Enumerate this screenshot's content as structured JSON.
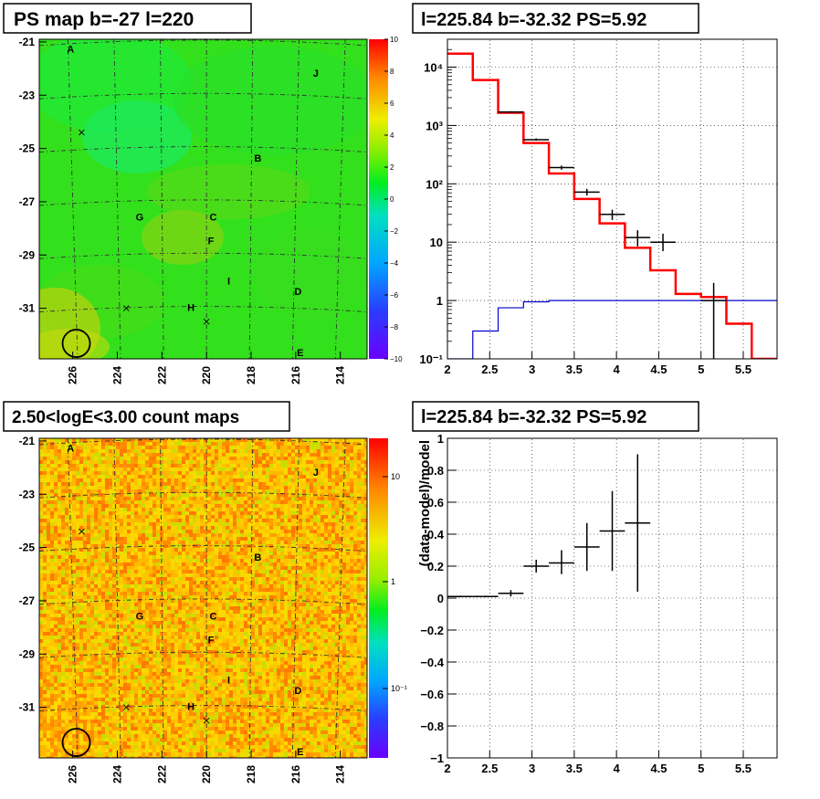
{
  "panels": {
    "ps_map": {
      "title": "PS map b=-27 l=220",
      "palette_ticks": [
        "10",
        "8",
        "6",
        "4",
        "2",
        "0",
        "−2",
        "−4",
        "−6",
        "−8",
        "−10"
      ]
    },
    "count_map": {
      "title": "2.50<logE<3.00 count maps",
      "palette_ticks": [
        "10",
        "1",
        "10⁻¹"
      ]
    },
    "sky": {
      "y_ticks": [
        "-21",
        "-23",
        "-25",
        "-27",
        "-29",
        "-31"
      ],
      "x_ticks": [
        "226",
        "224",
        "222",
        "220",
        "218",
        "216",
        "214"
      ],
      "sources": [
        {
          "label": "A",
          "l": 226.1,
          "b": -21.4
        },
        {
          "label": "J",
          "l": 215.1,
          "b": -22.3
        },
        {
          "label": "B",
          "l": 217.7,
          "b": -25.5
        },
        {
          "label": "G",
          "l": 223.0,
          "b": -27.7
        },
        {
          "label": "C",
          "l": 219.7,
          "b": -27.7
        },
        {
          "label": "F",
          "l": 219.8,
          "b": -28.6
        },
        {
          "label": "I",
          "l": 219.0,
          "b": -30.1
        },
        {
          "label": "D",
          "l": 215.9,
          "b": -30.5
        },
        {
          "label": "H",
          "l": 220.7,
          "b": -31.1
        },
        {
          "label": "E",
          "l": 215.8,
          "b": -32.8
        }
      ],
      "markers": [
        {
          "l": 225.6,
          "b": -24.4
        },
        {
          "l": 223.6,
          "b": -31.0
        },
        {
          "l": 220.0,
          "b": -31.5
        }
      ],
      "roi_circle": {
        "l": 225.84,
        "b": -32.32
      }
    },
    "spectrum": {
      "title": "l=225.84 b=-32.32 PS=5.92"
    },
    "residual": {
      "title": "l=225.84 b=-32.32 PS=5.92"
    }
  },
  "chart_data": [
    {
      "type": "heatmap",
      "title": "PS map b=-27 l=220",
      "xlim": [
        227.5,
        212.8
      ],
      "ylim": [
        -32.9,
        -20.9
      ],
      "colorbar_range": [
        -10,
        10
      ],
      "colorbar_ticks": [
        10,
        8,
        6,
        4,
        2,
        0,
        -2,
        -4,
        -6,
        -8,
        -10
      ],
      "grid": true
    },
    {
      "type": "line",
      "title": "l=225.84 b=-32.32 PS=5.92",
      "xlim": [
        2,
        5.9
      ],
      "ylim": [
        0.1,
        30000
      ],
      "yscale": "log",
      "x_ticks": [
        2,
        2.5,
        3,
        3.5,
        4,
        4.5,
        5,
        5.5
      ],
      "y_ticks": [
        "10⁻¹",
        "1",
        "10",
        "10²",
        "10³",
        "10⁴"
      ],
      "grid": true,
      "series": [
        {
          "kind": "step",
          "color": "#ff0000",
          "bin_edges": [
            2.0,
            2.3,
            2.6,
            2.9,
            3.2,
            3.5,
            3.8,
            4.1,
            4.4,
            4.7,
            5.0,
            5.3,
            5.6,
            5.9
          ],
          "values": [
            17000,
            6000,
            1650,
            500,
            150,
            55,
            21,
            8,
            3.3,
            1.3,
            1.15,
            0.4,
            0.1
          ]
        },
        {
          "kind": "step",
          "color": "#0000cc",
          "bin_edges": [
            2.0,
            2.3,
            2.6,
            2.9,
            3.2,
            3.5,
            3.8,
            4.1,
            4.4,
            4.7,
            5.0,
            5.3,
            5.6,
            5.9
          ],
          "values": [
            0.1,
            0.3,
            0.75,
            0.95,
            1,
            1,
            1,
            1,
            1,
            1,
            1,
            1,
            1
          ]
        },
        {
          "kind": "points",
          "color": "#000000",
          "points": [
            {
              "x": 2.75,
              "y": 1700,
              "xerr": 0.15,
              "ylo": 1650,
              "yhi": 1750
            },
            {
              "x": 3.05,
              "y": 570,
              "xerr": 0.15,
              "ylo": 550,
              "yhi": 600
            },
            {
              "x": 3.35,
              "y": 190,
              "xerr": 0.15,
              "ylo": 175,
              "yhi": 205
            },
            {
              "x": 3.65,
              "y": 72,
              "xerr": 0.15,
              "ylo": 63,
              "yhi": 82
            },
            {
              "x": 3.95,
              "y": 30,
              "xerr": 0.15,
              "ylo": 24,
              "yhi": 36
            },
            {
              "x": 4.25,
              "y": 12,
              "xerr": 0.15,
              "ylo": 8.5,
              "yhi": 16
            },
            {
              "x": 4.55,
              "y": 10,
              "xerr": 0.15,
              "ylo": 7,
              "yhi": 14
            },
            {
              "x": 5.15,
              "y": 1,
              "xerr": 0.15,
              "ylo": 0.1,
              "yhi": 2
            }
          ]
        }
      ]
    },
    {
      "type": "heatmap",
      "title": "2.50<logE<3.00 count maps",
      "xlim": [
        227.5,
        212.8
      ],
      "ylim": [
        -32.9,
        -20.9
      ],
      "colorbar_scale": "log",
      "colorbar_ticks": [
        "10",
        "1",
        "10⁻¹"
      ],
      "grid": true
    },
    {
      "type": "scatter",
      "title": "l=225.84 b=-32.32 PS=5.92",
      "ylabel": "(data-model)/model",
      "xlim": [
        2,
        5.9
      ],
      "ylim": [
        -1,
        1
      ],
      "x_ticks": [
        2,
        2.5,
        3,
        3.5,
        4,
        4.5,
        5,
        5.5
      ],
      "y_ticks": [
        "1",
        "0.8",
        "0.6",
        "0.4",
        "0.2",
        "0",
        "−0.2",
        "−0.4",
        "−0.6",
        "−0.8",
        "−1"
      ],
      "grid": true,
      "points": [
        {
          "x": 2.15,
          "y": 0.01,
          "xerr": 0.15,
          "ylo": 0.005,
          "yhi": 0.015
        },
        {
          "x": 2.45,
          "y": 0.01,
          "xerr": 0.15,
          "ylo": 0.005,
          "yhi": 0.015
        },
        {
          "x": 2.75,
          "y": 0.03,
          "xerr": 0.15,
          "ylo": 0.01,
          "yhi": 0.05
        },
        {
          "x": 3.05,
          "y": 0.2,
          "xerr": 0.15,
          "ylo": 0.16,
          "yhi": 0.24
        },
        {
          "x": 3.35,
          "y": 0.22,
          "xerr": 0.15,
          "ylo": 0.15,
          "yhi": 0.3
        },
        {
          "x": 3.65,
          "y": 0.32,
          "xerr": 0.15,
          "ylo": 0.17,
          "yhi": 0.47
        },
        {
          "x": 3.95,
          "y": 0.42,
          "xerr": 0.15,
          "ylo": 0.17,
          "yhi": 0.67
        },
        {
          "x": 4.25,
          "y": 0.47,
          "xerr": 0.15,
          "ylo": 0.04,
          "yhi": 0.9
        }
      ]
    }
  ]
}
